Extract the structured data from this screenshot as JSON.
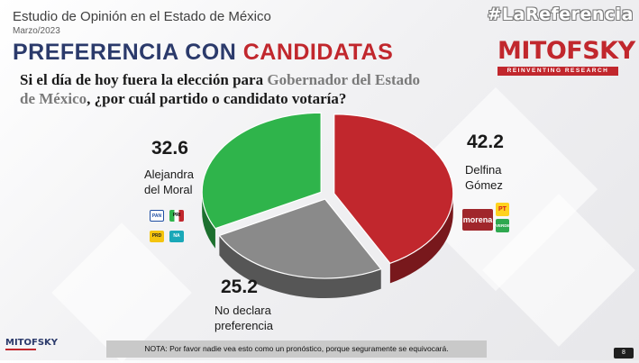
{
  "header": {
    "title": "Estudio de Opinión en el Estado de México",
    "date": "Marzo/2023",
    "hashtag": "#LaReferencia"
  },
  "slide": {
    "title_part1": "PREFERENCIA CON ",
    "title_part2": "CANDIDATAS",
    "question_part1": "Si el día de hoy fuera la elección para ",
    "question_highlight": "Gobernador del Estado de México",
    "question_part2": ", ¿por cuál partido o candidato votaría?"
  },
  "logo": {
    "brand": "MITOFSKY",
    "tagline": "REINVENTING RESEARCH"
  },
  "left_logos": [
    "PAN",
    "PRI",
    "PRD",
    "NA"
  ],
  "right_logos": [
    "morena",
    "PT",
    "VERDE"
  ],
  "colors": {
    "delfina": "#c1272d",
    "alejandra": "#2fb44b",
    "no_declara": "#8a8a8a",
    "title_blue": "#2b3a6b"
  },
  "chart_data": {
    "type": "pie",
    "style": "3d-exploded",
    "slices": [
      {
        "label": "Delfina Gómez",
        "value": 42.2,
        "color": "#c1272d"
      },
      {
        "label": "No declara preferencia",
        "value": 25.2,
        "color": "#8a8a8a"
      },
      {
        "label": "Alejandra del Moral",
        "value": 32.6,
        "color": "#2fb44b"
      }
    ],
    "value_labels": {
      "delfina": "42.2",
      "alejandra": "32.6",
      "no_declara": "25.2"
    },
    "candidate_labels": {
      "delfina_line1": "Delfina",
      "delfina_line2": "Gómez",
      "alejandra_line1": "Alejandra",
      "alejandra_line2": "del Moral",
      "no_declara_line1": "No declara",
      "no_declara_line2": "preferencia"
    }
  },
  "footer": {
    "mini_brand": "MITOFSKY",
    "note": "NOTA: Por favor nadie vea esto como un pronóstico, porque seguramente se equivocará.",
    "page": "8"
  }
}
